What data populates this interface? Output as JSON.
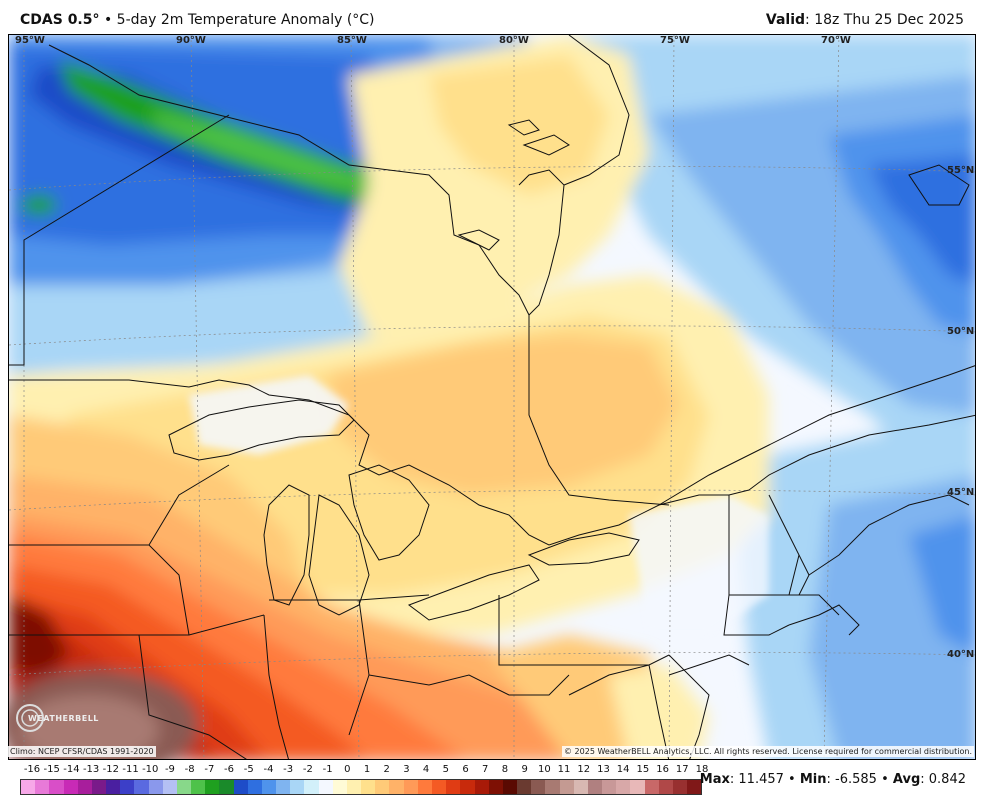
{
  "header": {
    "model": "CDAS 0.5",
    "degree": "°",
    "bullet": "•",
    "product": "5-day 2m Temperature Anomaly (°C)",
    "valid_label": "Valid",
    "valid_value": ": 18z Thu 25 Dec 2025"
  },
  "map": {
    "longitude_labels": [
      "95°W",
      "90°W",
      "85°W",
      "80°W",
      "75°W",
      "70°W"
    ],
    "latitude_labels": [
      "55°N",
      "50°N",
      "45°N",
      "40°N"
    ],
    "climo_note": "Climo: NCEP CFSR/CDAS 1991-2020",
    "copyright": "© 2025 WeatherBELL Analytics, LLC. All rights reserved. License required for commercial distribution.",
    "logo_text": "WEATHERBELL"
  },
  "colorbar": {
    "labels": [
      "-16",
      "-15",
      "-14",
      "-13",
      "-12",
      "-11",
      "-10",
      "-9",
      "-8",
      "-7",
      "-6",
      "-5",
      "-4",
      "-3",
      "-2",
      "-1",
      "0",
      "1",
      "2",
      "3",
      "4",
      "5",
      "6",
      "7",
      "8",
      "9",
      "10",
      "11",
      "12",
      "13",
      "14",
      "15",
      "16",
      "17",
      "18"
    ],
    "colors": [
      "#f7a8e8",
      "#e87ad8",
      "#d94ec8",
      "#c82ab6",
      "#a81e9c",
      "#7a1a8a",
      "#4a1fa0",
      "#3c3fc8",
      "#5a6ae0",
      "#8a98ec",
      "#b4c0f4",
      "#88d88a",
      "#4ec24a",
      "#1fa01f",
      "#1a8a2a",
      "#1e4cc8",
      "#2f6fe0",
      "#4f93ec",
      "#7fb4f0",
      "#a9d6f6",
      "#d2f0fa",
      "#f4f8ff",
      "#fffbd6",
      "#fff0b0",
      "#ffe08c",
      "#ffca78",
      "#ffb268",
      "#ff9a58",
      "#ff7a3c",
      "#f45a24",
      "#e03c14",
      "#c82a0c",
      "#a81a08",
      "#7e1004",
      "#5a0a02",
      "#6a3a30",
      "#8a5a52",
      "#a87a72",
      "#c49a92",
      "#d8b8b2",
      "#b08080",
      "#c89898",
      "#d8a8a8",
      "#e8b8b8",
      "#c86868",
      "#b04848",
      "#983030",
      "#801818"
    ]
  },
  "stats": {
    "max_label": "Max",
    "max_value": ": 11.457",
    "min_label": "Min",
    "min_value": ": -6.585",
    "avg_label": "Avg",
    "avg_value": ": 0.842",
    "separator": "•"
  }
}
